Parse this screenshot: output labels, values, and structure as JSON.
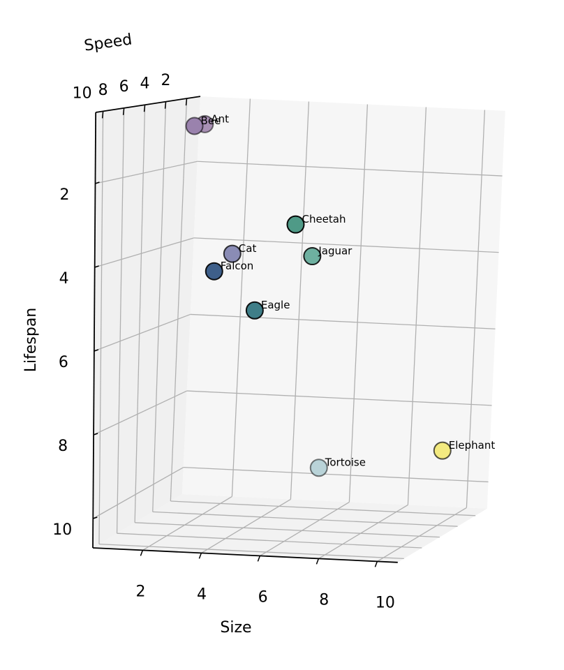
{
  "chart_data": {
    "type": "scatter3d",
    "xlabel": "Size",
    "ylabel": "Speed",
    "zlabel": "Lifespan",
    "labels": [
      "Ant",
      "Bee",
      "Cat",
      "Cheetah",
      "Eagle",
      "Elephant",
      "Falcon",
      "Jaguar",
      "Tortoise"
    ],
    "x": [
      0.6,
      0.6,
      3.4,
      6.9,
      5.2,
      10.1,
      3.8,
      6.8,
      5.0
    ],
    "y": [
      1,
      2,
      6,
      10,
      9,
      4,
      9,
      8,
      1
    ],
    "z": [
      1.0,
      1.0,
      3.9,
      2.8,
      5.0,
      8.8,
      4.1,
      3.7,
      9.8
    ],
    "colors": [
      "#a890b4",
      "#9a82ad",
      "#8a8cb5",
      "#4f9a87",
      "#3f7e88",
      "#f3ea80",
      "#3e5f8a",
      "#6eb0a0",
      "#b9d3d8"
    ],
    "xlim": [
      0.3,
      10.7
    ],
    "ylim": [
      0.7,
      10.7
    ],
    "zlim": [
      0.3,
      10.7
    ],
    "xticks": [
      2,
      4,
      6,
      8,
      10
    ],
    "yticks": [
      2,
      4,
      6,
      8,
      10
    ],
    "zticks": [
      2,
      4,
      6,
      8,
      10
    ],
    "z_inverted": true,
    "grid": true
  }
}
